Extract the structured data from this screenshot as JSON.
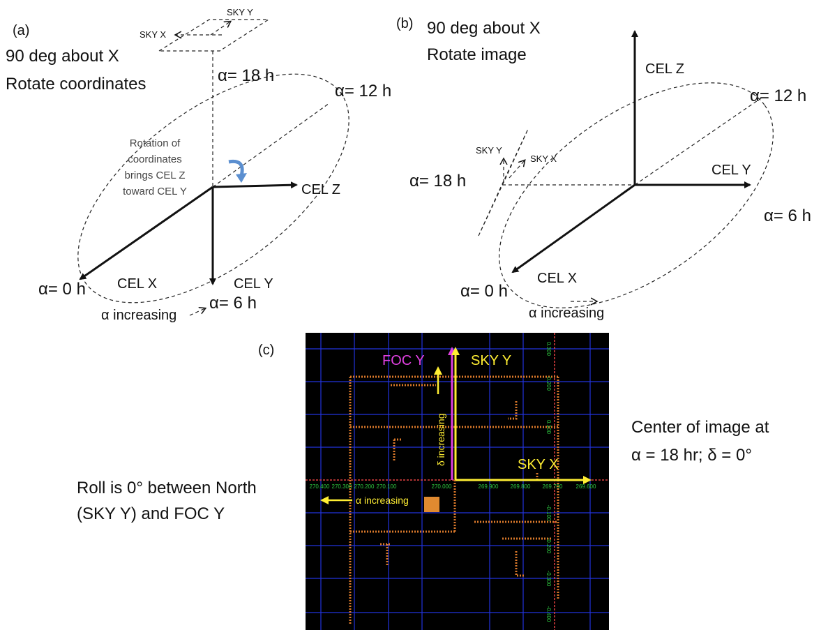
{
  "panel_a": {
    "label": "(a)",
    "caption_lines": [
      "90 deg about X",
      "Rotate coordinates"
    ],
    "sky_x": "SKY X",
    "sky_y": "SKY Y",
    "ra_18": "α= 18 h",
    "ra_12": "α= 12 h",
    "ra_0": "α= 0 h",
    "ra_6": "α= 6 h",
    "note_lines": [
      "Rotation of",
      "coordinates",
      "brings CEL Z",
      "toward CEL  Y"
    ],
    "cel_z": "CEL Z",
    "cel_x": "CEL X",
    "cel_y": "CEL Y",
    "alpha_increasing": "α increasing"
  },
  "panel_b": {
    "label": "(b)",
    "caption_lines": [
      "90 deg about X",
      "Rotate image"
    ],
    "sky_x": "SKY X",
    "sky_y": "SKY Y",
    "cel_z": "CEL Z",
    "cel_y": "CEL Y",
    "cel_x": "CEL X",
    "ra_12": "α= 12 h",
    "ra_6": "α= 6 h",
    "ra_0": "α= 0 h",
    "ra_18": "α= 18 h",
    "alpha_increasing": "α increasing"
  },
  "panel_c": {
    "label": "(c)",
    "foc_y": "FOC Y",
    "sky_y": "SKY Y",
    "sky_x": "SKY X",
    "delta_increasing": "δ increasing",
    "alpha_increasing": "α increasing",
    "x_tick_labels": [
      "270.400",
      "270.300",
      "270.200",
      "270.100",
      "270.000",
      "269.900",
      "269.800",
      "269.700",
      "269.600"
    ],
    "y_tick_labels": [
      "0.300",
      "0.200",
      "0.100",
      "-0.100",
      "-0.200",
      "-0.300",
      "-0.400"
    ],
    "center_lines": [
      "Center of image at",
      "α = 18 hr; δ = 0°"
    ],
    "roll_lines": [
      "Roll is 0° between North",
      "(SKY Y) and FOC Y"
    ]
  }
}
